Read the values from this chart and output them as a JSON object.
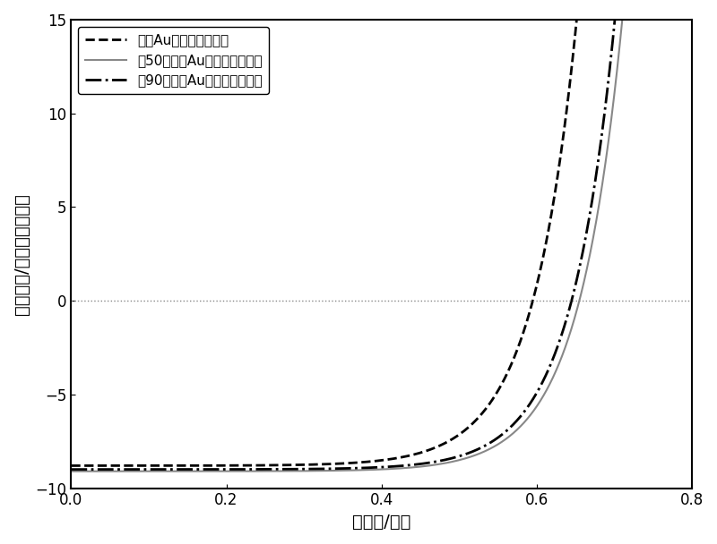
{
  "title": "",
  "xlabel": "光电压/伏特",
  "ylabel": "电流密度/毫安每平方厘米",
  "xlim": [
    0.0,
    0.8
  ],
  "ylim": [
    -10,
    15
  ],
  "xticks": [
    0.0,
    0.2,
    0.4,
    0.6,
    0.8
  ],
  "yticks": [
    -10,
    -5,
    0,
    5,
    10,
    15
  ],
  "legend": [
    {
      "label": "不含Au纳米颗粒的电池",
      "linestyle": "--",
      "color": "#000000",
      "linewidth": 2.0
    },
    {
      "label": "含50纳米的Au纳米颗粒的电池",
      "linestyle": "-",
      "color": "#888888",
      "linewidth": 1.5
    },
    {
      "label": "含90纳米的Au纳米颗粒的电池",
      "linestyle": "-.",
      "color": "#000000",
      "linewidth": 2.0
    }
  ],
  "zero_line": {
    "y": 0,
    "color": "#888888",
    "linestyle": ":",
    "linewidth": 1.0
  },
  "curves": {
    "no_au": {
      "Jsc": -8.8,
      "Voc": 0.595,
      "n": 2.2
    },
    "au50": {
      "Jsc": -9.1,
      "Voc": 0.655,
      "n": 2.2
    },
    "au90": {
      "Jsc": -9.0,
      "Voc": 0.645,
      "n": 2.2
    }
  },
  "background_color": "#ffffff",
  "font_size_label": 14,
  "font_size_tick": 12,
  "font_size_legend": 11
}
